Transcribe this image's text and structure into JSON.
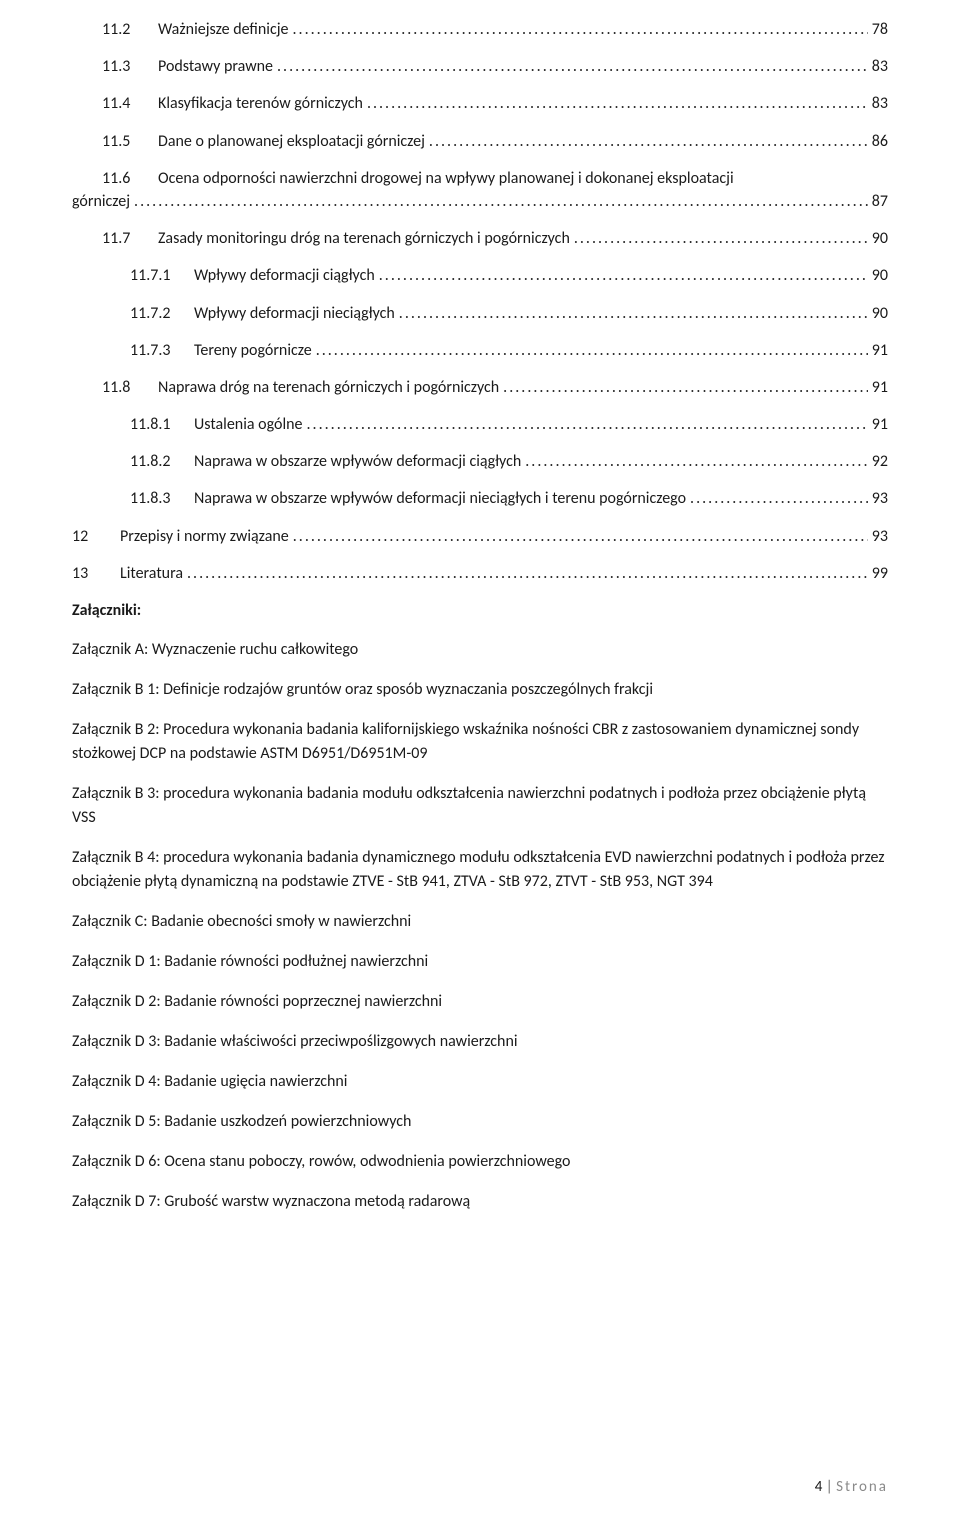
{
  "toc": [
    {
      "num": "11.2",
      "title": "Ważniejsze definicje",
      "page": "78",
      "level": 1
    },
    {
      "num": "11.3",
      "title": "Podstawy prawne",
      "page": "83",
      "level": 1
    },
    {
      "num": "11.4",
      "title": "Klasyfikacja terenów górniczych",
      "page": "83",
      "level": 1
    },
    {
      "num": "11.5",
      "title": "Dane o planowanej eksploatacji górniczej",
      "page": "86",
      "level": 1
    },
    {
      "num": "11.6",
      "title_line1": "Ocena odporności nawierzchni drogowej na wpływy planowanej i dokonanej eksploatacji",
      "title_line2": "górniczej",
      "page": "87",
      "level": 1,
      "multiline": true,
      "outdent": true
    },
    {
      "num": "11.7",
      "title": "Zasady monitoringu dróg na terenach górniczych i pogórniczych",
      "page": "90",
      "level": 1
    },
    {
      "num": "11.7.1",
      "title": "Wpływy deformacji ciągłych",
      "page": "90",
      "level": 2
    },
    {
      "num": "11.7.2",
      "title": "Wpływy deformacji nieciągłych",
      "page": "90",
      "level": 2
    },
    {
      "num": "11.7.3",
      "title": "Tereny pogórnicze",
      "page": "91",
      "level": 2
    },
    {
      "num": "11.8",
      "title": "Naprawa dróg na terenach górniczych i pogórniczych",
      "page": "91",
      "level": 1
    },
    {
      "num": "11.8.1",
      "title": "Ustalenia ogólne",
      "page": "91",
      "level": 2
    },
    {
      "num": "11.8.2",
      "title": "Naprawa w obszarze wpływów deformacji ciągłych",
      "page": "92",
      "level": 2
    },
    {
      "num": "11.8.3",
      "title": "Naprawa w obszarze wpływów deformacji nieciągłych i terenu pogórniczego",
      "page": "93",
      "level": 2
    },
    {
      "num": "12",
      "title": "Przepisy i normy związane",
      "page": "93",
      "level": 0
    },
    {
      "num": "13",
      "title": "Literatura",
      "page": "99",
      "level": 0
    }
  ],
  "attachments_heading": "Załączniki:",
  "attachments": [
    "Załącznik A: Wyznaczenie ruchu całkowitego",
    "Załącznik B 1: Definicje rodzajów gruntów oraz sposób wyznaczania poszczególnych frakcji",
    "Załącznik B 2: Procedura wykonania badania kalifornijskiego wskaźnika nośności CBR z zastosowaniem dynamicznej sondy stożkowej DCP na podstawie ASTM D6951/D6951M-09",
    "Załącznik B 3: procedura wykonania badania modułu odkształcenia nawierzchni podatnych i podłoża przez obciążenie płytą VSS",
    "Załącznik B 4: procedura wykonania badania dynamicznego modułu odkształcenia EVD nawierzchni podatnych i podłoża przez obciążenie płytą dynamiczną na podstawie ZTVE - StB 941, ZTVA - StB 972, ZTVT - StB 953, NGT 394",
    "Załącznik C: Badanie obecności smoły w nawierzchni",
    "Załącznik D 1: Badanie równości podłużnej nawierzchni",
    "Załącznik D 2: Badanie równości poprzecznej nawierzchni",
    "Załącznik D 3: Badanie właściwości przeciwpoślizgowych nawierzchni",
    "Załącznik D 4: Badanie ugięcia nawierzchni",
    "Załącznik D 5: Badanie uszkodzeń powierzchniowych",
    "Załącznik D 6: Ocena stanu poboczy, rowów, odwodnienia powierzchniowego",
    "Załącznik D 7: Grubość warstw wyznaczona metodą radarową"
  ],
  "footer": {
    "page": "4",
    "sep": " | ",
    "label": "Strona"
  }
}
